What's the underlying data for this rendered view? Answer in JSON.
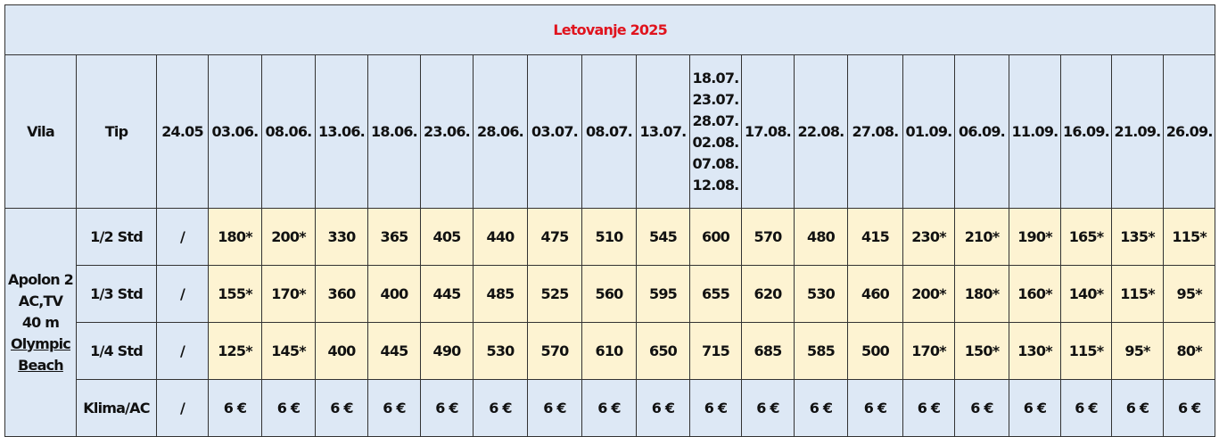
{
  "table": {
    "title": "Letovanje 2025",
    "columns": [
      "Vila",
      "Tip",
      "24.05",
      "03.06.",
      "08.06.",
      "13.06.",
      "18.06.",
      "23.06.",
      "28.06.",
      "03.07.",
      "08.07.",
      "13.07.",
      [
        "18.07.",
        "23.07.",
        "28.07.",
        "02.08.",
        "07.08.",
        "12.08."
      ],
      "17.08.",
      "22.08.",
      "27.08.",
      "01.09.",
      "06.09.",
      "11.09.",
      "16.09.",
      "21.09.",
      "26.09."
    ],
    "villa": {
      "name": "Apolon 2 AC,TV",
      "size": "40 m",
      "link": "Olympic Beach"
    },
    "rows": [
      {
        "type": "1/2 Std",
        "cells": [
          "/",
          "180*",
          "200*",
          "330",
          "365",
          "405",
          "440",
          "475",
          "510",
          "545",
          "600",
          "570",
          "480",
          "415",
          "230*",
          "210*",
          "190*",
          "165*",
          "135*",
          "115*"
        ]
      },
      {
        "type": "1/3 Std",
        "cells": [
          "/",
          "155*",
          "170*",
          "360",
          "400",
          "445",
          "485",
          "525",
          "560",
          "595",
          "655",
          "620",
          "530",
          "460",
          "200*",
          "180*",
          "160*",
          "140*",
          "115*",
          "95*"
        ]
      },
      {
        "type": "1/4 Std",
        "cells": [
          "/",
          "125*",
          "145*",
          "400",
          "445",
          "490",
          "530",
          "570",
          "610",
          "650",
          "715",
          "685",
          "585",
          "500",
          "170*",
          "150*",
          "130*",
          "115*",
          "95*",
          "80*"
        ]
      },
      {
        "type": "Klima/AC",
        "cells": [
          "/",
          "6 €",
          "6 €",
          "6 €",
          "6 €",
          "6 €",
          "6 €",
          "6 €",
          "6 €",
          "6 €",
          "6 €",
          "6 €",
          "6 €",
          "6 €",
          "6 €",
          "6 €",
          "6 €",
          "6 €",
          "6 €",
          "6 €"
        ]
      }
    ]
  }
}
